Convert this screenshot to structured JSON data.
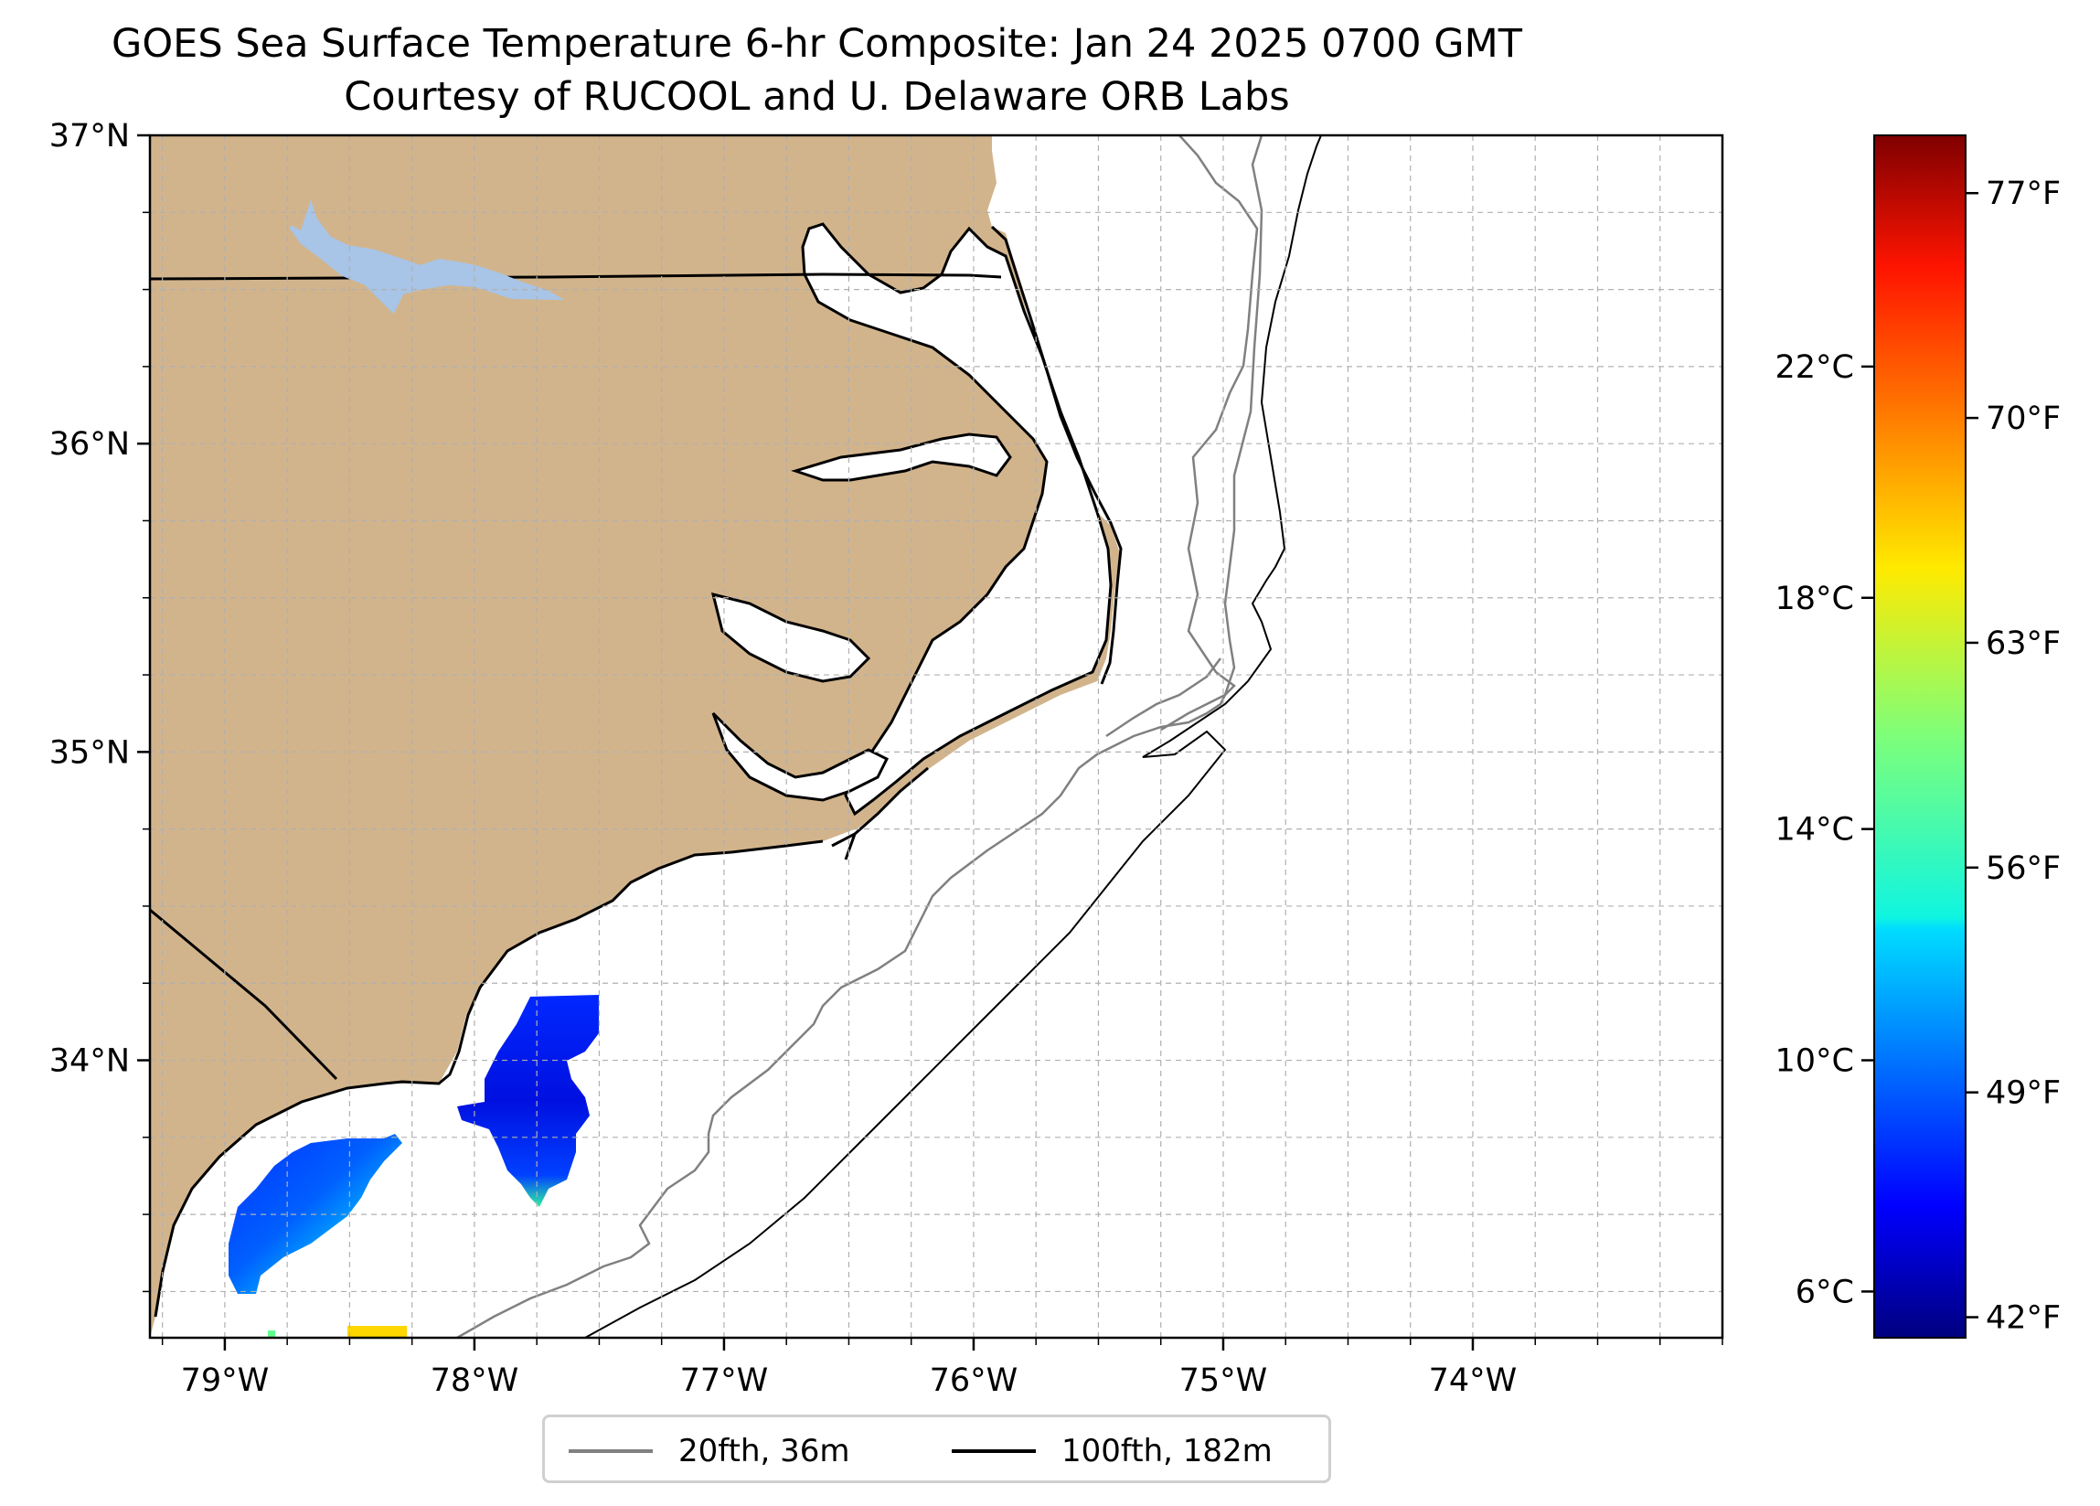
{
  "title": "GOES Sea Surface Temperature 6-hr Composite: Jan 24 2025 0700 GMT",
  "subtitle": "Courtesy of RUCOOL and U. Delaware ORB Labs",
  "map": {
    "lon_range": [
      -79.3,
      -73.0
    ],
    "lat_range": [
      33.1,
      37.0
    ],
    "lat_ticks": [
      {
        "value": 37,
        "label": "37°N"
      },
      {
        "value": 36,
        "label": "36°N"
      },
      {
        "value": 35,
        "label": "35°N"
      },
      {
        "value": 34,
        "label": "34°N"
      }
    ],
    "lon_ticks": [
      {
        "value": -79,
        "label": "79°W"
      },
      {
        "value": -78,
        "label": "78°W"
      },
      {
        "value": -77,
        "label": "77°W"
      },
      {
        "value": -76,
        "label": "76°W"
      },
      {
        "value": -75,
        "label": "75°W"
      },
      {
        "value": -74,
        "label": "74°W"
      }
    ],
    "grid": true,
    "colors": {
      "land": "#D2B48C",
      "water_inland": "#A8C4E6",
      "isobath_20": "#808080",
      "isobath_100": "#000000",
      "grid": "#b0b0b0"
    }
  },
  "legend": {
    "placement": "below",
    "items": [
      {
        "label": "20fth, 36m",
        "color": "#808080"
      },
      {
        "label": "100fth, 182m",
        "color": "#000000"
      }
    ]
  },
  "colorbar": {
    "colormap": "jet",
    "celsius_ticks": [
      {
        "value": 22,
        "label": "22°C"
      },
      {
        "value": 18,
        "label": "18°C"
      },
      {
        "value": 14,
        "label": "14°C"
      },
      {
        "value": 10,
        "label": "10°C"
      },
      {
        "value": 6,
        "label": "6°C"
      }
    ],
    "fahrenheit_ticks": [
      {
        "value": 77,
        "label": "77°F"
      },
      {
        "value": 70,
        "label": "70°F"
      },
      {
        "value": 63,
        "label": "63°F"
      },
      {
        "value": 56,
        "label": "56°F"
      },
      {
        "value": 49,
        "label": "49°F"
      },
      {
        "value": 42,
        "label": "42°F"
      }
    ],
    "celsius_range": [
      5.2,
      26.0
    ]
  }
}
